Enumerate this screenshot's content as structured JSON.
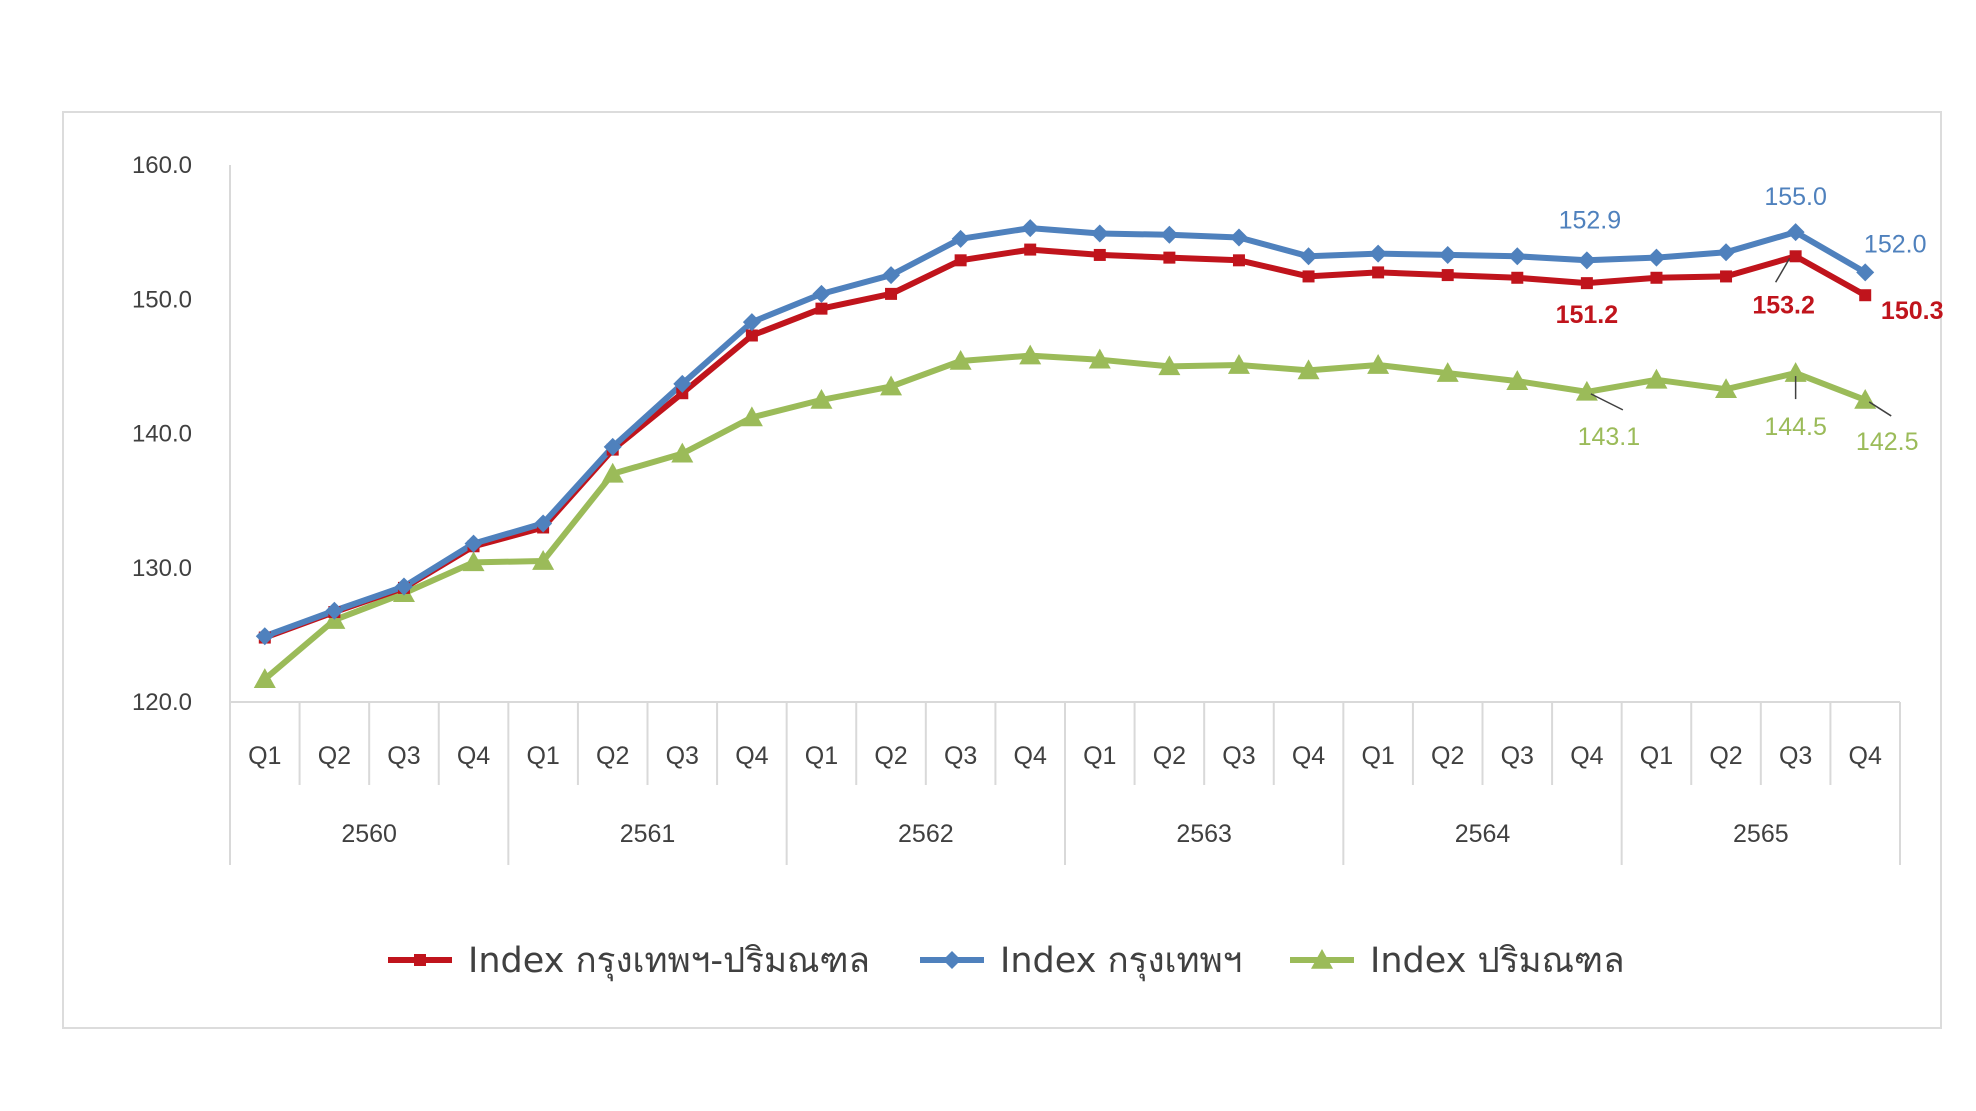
{
  "chart_data": {
    "type": "line",
    "ylim": [
      120,
      160
    ],
    "yticks": [
      "160.0",
      "150.0",
      "140.0",
      "130.0",
      "120.0"
    ],
    "quarters": [
      "Q1",
      "Q2",
      "Q3",
      "Q4",
      "Q1",
      "Q2",
      "Q3",
      "Q4",
      "Q1",
      "Q2",
      "Q3",
      "Q4",
      "Q1",
      "Q2",
      "Q3",
      "Q4",
      "Q1",
      "Q2",
      "Q3",
      "Q4",
      "Q1",
      "Q2",
      "Q3",
      "Q4"
    ],
    "years": [
      "2560",
      "2561",
      "2562",
      "2563",
      "2564",
      "2565"
    ],
    "series": [
      {
        "name": "Index กรุงเทพฯ-ปริมณฑล",
        "color": "#c0141c",
        "marker": "square",
        "values": [
          124.8,
          126.7,
          128.5,
          131.6,
          133.0,
          138.8,
          143.0,
          147.3,
          149.3,
          150.4,
          152.9,
          153.7,
          153.3,
          153.1,
          152.9,
          151.7,
          152.0,
          151.8,
          151.6,
          151.2,
          151.6,
          151.7,
          153.2,
          150.3
        ],
        "labels": [
          {
            "index": 19,
            "text": "151.2"
          },
          {
            "index": 22,
            "text": "153.2"
          },
          {
            "index": 23,
            "text": "150.3"
          }
        ]
      },
      {
        "name": "Index กรุงเทพฯ",
        "color": "#4f81bd",
        "marker": "diamond",
        "values": [
          124.9,
          126.8,
          128.6,
          131.8,
          133.3,
          139.0,
          143.7,
          148.3,
          150.4,
          151.8,
          154.5,
          155.3,
          154.9,
          154.8,
          154.6,
          153.2,
          153.4,
          153.3,
          153.2,
          152.9,
          153.1,
          153.5,
          155.0,
          152.0
        ],
        "labels": [
          {
            "index": 19,
            "text": "152.9"
          },
          {
            "index": 22,
            "text": "155.0"
          },
          {
            "index": 23,
            "text": "152.0"
          }
        ]
      },
      {
        "name": "Index ปริมณฑล",
        "color": "#9bbb59",
        "marker": "triangle",
        "values": [
          121.7,
          126.1,
          128.1,
          130.4,
          130.5,
          137.0,
          138.5,
          141.2,
          142.5,
          143.5,
          145.4,
          145.8,
          145.5,
          145.0,
          145.1,
          144.7,
          145.1,
          144.5,
          143.9,
          143.1,
          144.0,
          143.3,
          144.5,
          142.5
        ],
        "labels": [
          {
            "index": 19,
            "text": "143.1"
          },
          {
            "index": 22,
            "text": "144.5"
          },
          {
            "index": 23,
            "text": "142.5"
          }
        ]
      }
    ],
    "legend_position": "bottom"
  }
}
